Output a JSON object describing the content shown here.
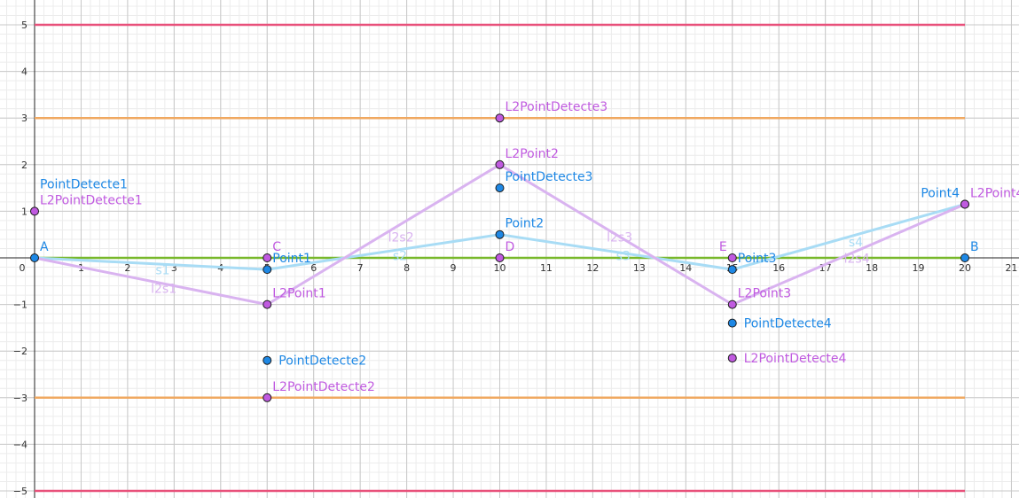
{
  "chart_data": {
    "type": "scatter",
    "title": "",
    "xlabel": "",
    "ylabel": "",
    "xlim": [
      -0.7,
      21
    ],
    "ylim": [
      -5.2,
      5.4
    ],
    "grid": true,
    "x_ticks": [
      "1",
      "2",
      "3",
      "4",
      "5",
      "6",
      "7",
      "8",
      "9",
      "10",
      "11",
      "12",
      "13",
      "14",
      "15",
      "16",
      "17",
      "18",
      "19",
      "20",
      "21"
    ],
    "x_tick_values": [
      1,
      2,
      3,
      4,
      5,
      6,
      7,
      8,
      9,
      10,
      11,
      12,
      13,
      14,
      15,
      16,
      17,
      18,
      19,
      20,
      21
    ],
    "y_ticks": [
      "5",
      "4",
      "3",
      "2",
      "1",
      "0",
      "−1",
      "−2",
      "−3",
      "−4",
      "−5"
    ],
    "y_tick_values": [
      5,
      4,
      3,
      2,
      1,
      0,
      -1,
      -2,
      -3,
      -4,
      -5
    ],
    "colors": {
      "blue": "#1e88e5",
      "blue_line": "#a8dcf5",
      "purple": "#c05ae0",
      "purple_line": "#d9b3f0",
      "red": "#e8507a",
      "orange": "#f0a860",
      "green": "#78b82a"
    },
    "hlines": [
      {
        "y": 5,
        "x_start": 0,
        "x_end": 20,
        "color": "#e8507a"
      },
      {
        "y": 3,
        "x_start": 0,
        "x_end": 20,
        "color": "#f0a860"
      },
      {
        "y": -3,
        "x_start": 0,
        "x_end": 20,
        "color": "#f0a860"
      },
      {
        "y": -5,
        "x_start": 0,
        "x_end": 20,
        "color": "#e8507a"
      },
      {
        "y": 0,
        "x_start": 0,
        "x_end": 20,
        "color": "#78b82a"
      }
    ],
    "series": [
      {
        "color": "#a8dcf5",
        "points": [
          [
            0,
            0
          ],
          [
            5,
            -0.25
          ],
          [
            10,
            0.5
          ],
          [
            15,
            -0.25
          ],
          [
            20,
            1.15
          ]
        ],
        "segment_labels": [
          {
            "text": "s1",
            "x": 2.6,
            "y": -0.35
          },
          {
            "text": "s2",
            "x": 7.7,
            "y": -0.05
          },
          {
            "text": "s3",
            "x": 12.5,
            "y": -0.05
          },
          {
            "text": "s4",
            "x": 17.5,
            "y": 0.25
          }
        ]
      },
      {
        "color": "#d9b3f0",
        "points": [
          [
            0,
            0
          ],
          [
            5,
            -1
          ],
          [
            10,
            2
          ],
          [
            15,
            -1
          ],
          [
            20,
            1.15
          ]
        ],
        "segment_labels": [
          {
            "text": "l2s1",
            "x": 2.5,
            "y": -0.75
          },
          {
            "text": "l2s2",
            "x": 7.6,
            "y": 0.35
          },
          {
            "text": "l2s3",
            "x": 12.3,
            "y": 0.35
          },
          {
            "text": "l2s4",
            "x": 17.4,
            "y": -0.1
          }
        ]
      }
    ],
    "points": [
      {
        "name": "A",
        "x": 0,
        "y": 0,
        "color": "#1e88e5",
        "label_color": "#1e88e5",
        "label_pos": "above"
      },
      {
        "name": "B",
        "x": 20,
        "y": 0,
        "color": "#1e88e5",
        "label_color": "#1e88e5",
        "label_pos": "above"
      },
      {
        "name": "C",
        "x": 5,
        "y": 0,
        "color": "#c05ae0",
        "label_color": "#c05ae0",
        "label_pos": "above"
      },
      {
        "name": "D",
        "x": 10,
        "y": 0,
        "color": "#c05ae0",
        "label_color": "#c05ae0",
        "label_pos": "above"
      },
      {
        "name": "E",
        "x": 15,
        "y": 0,
        "color": "#c05ae0",
        "label_color": "#c05ae0",
        "label_pos": "above-left"
      },
      {
        "name": "Point1",
        "x": 5,
        "y": -0.25,
        "color": "#1e88e5",
        "label_color": "#1e88e5",
        "label_pos": "above"
      },
      {
        "name": "Point2",
        "x": 10,
        "y": 0.5,
        "color": "#1e88e5",
        "label_color": "#1e88e5",
        "label_pos": "above"
      },
      {
        "name": "Point3",
        "x": 15,
        "y": -0.25,
        "color": "#1e88e5",
        "label_color": "#1e88e5",
        "label_pos": "above"
      },
      {
        "name": "Point4",
        "x": 20,
        "y": 1.15,
        "color": "#1e88e5",
        "label_color": "#1e88e5",
        "label_pos": "above-left"
      },
      {
        "name": "L2Point1",
        "x": 5,
        "y": -1,
        "color": "#c05ae0",
        "label_color": "#c05ae0",
        "label_pos": "above"
      },
      {
        "name": "L2Point2",
        "x": 10,
        "y": 2,
        "color": "#c05ae0",
        "label_color": "#c05ae0",
        "label_pos": "above"
      },
      {
        "name": "L2Point3",
        "x": 15,
        "y": -1,
        "color": "#c05ae0",
        "label_color": "#c05ae0",
        "label_pos": "above"
      },
      {
        "name": "L2Point4",
        "x": 20,
        "y": 1.15,
        "color": "#c05ae0",
        "label_color": "#c05ae0",
        "label_pos": "above"
      },
      {
        "name": "PointDetecte1",
        "x": 0,
        "y": 1,
        "color": null,
        "label_color": "#1e88e5",
        "label_pos": "far-above"
      },
      {
        "name": "L2PointDetecte1",
        "x": 0,
        "y": 1,
        "color": "#c05ae0",
        "label_color": "#c05ae0",
        "label_pos": "above"
      },
      {
        "name": "PointDetecte2",
        "x": 5,
        "y": -2.2,
        "color": "#1e88e5",
        "label_color": "#1e88e5",
        "label_pos": "right"
      },
      {
        "name": "L2PointDetecte2",
        "x": 5,
        "y": -3,
        "color": "#c05ae0",
        "label_color": "#c05ae0",
        "label_pos": "above"
      },
      {
        "name": "PointDetecte3",
        "x": 10,
        "y": 1.5,
        "color": "#1e88e5",
        "label_color": "#1e88e5",
        "label_pos": "above"
      },
      {
        "name": "L2PointDetecte3",
        "x": 10,
        "y": 3,
        "color": "#c05ae0",
        "label_color": "#c05ae0",
        "label_pos": "above"
      },
      {
        "name": "PointDetecte4",
        "x": 15,
        "y": -1.4,
        "color": "#1e88e5",
        "label_color": "#1e88e5",
        "label_pos": "right"
      },
      {
        "name": "L2PointDetecte4",
        "x": 15,
        "y": -2.15,
        "color": "#c05ae0",
        "label_color": "#c05ae0",
        "label_pos": "right"
      }
    ]
  }
}
